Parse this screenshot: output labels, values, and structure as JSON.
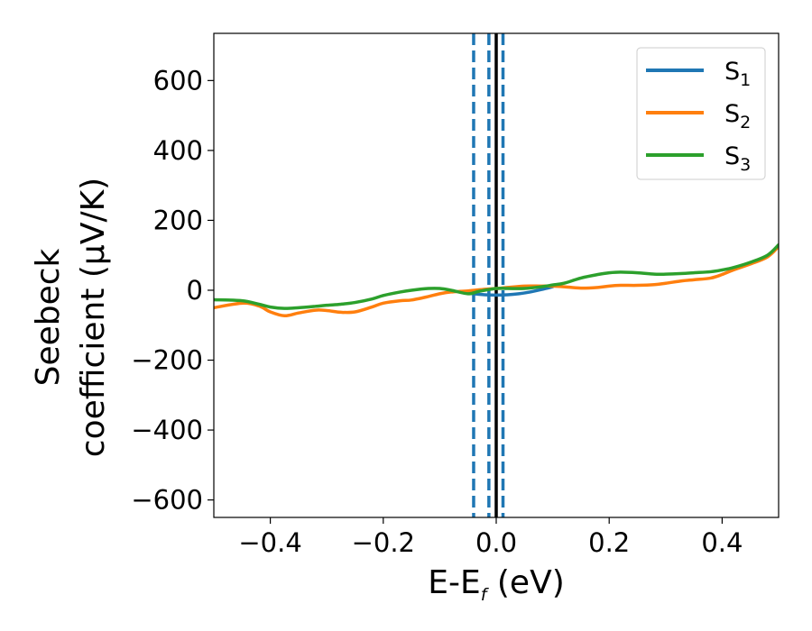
{
  "chart_data": {
    "type": "line",
    "xlabel": {
      "main": "E-E",
      "sub": "f",
      "tail": " (eV)"
    },
    "ylabel": {
      "line1": "Seebeck",
      "line2": "coefficient  (μV/K)"
    },
    "xlim": [
      -0.5,
      0.5
    ],
    "ylim": [
      -650,
      735
    ],
    "xticks": [
      -0.4,
      -0.2,
      0.0,
      0.2,
      0.4
    ],
    "xtick_labels": [
      "−0.4",
      "−0.2",
      "0.0",
      "0.2",
      "0.4"
    ],
    "yticks": [
      -600,
      -400,
      -200,
      0,
      200,
      400,
      600
    ],
    "ytick_labels": [
      "−600",
      "−400",
      "−200",
      "0",
      "200",
      "400",
      "600"
    ],
    "grid": false,
    "legend_position": "top-right",
    "vlines": [
      {
        "x": 0.0,
        "style": "solid",
        "color": "#000000"
      },
      {
        "x": -0.04,
        "style": "dashed",
        "color": "#1f77b4"
      },
      {
        "x": -0.013,
        "style": "dashed",
        "color": "#1f77b4"
      },
      {
        "x": 0.012,
        "style": "dashed",
        "color": "#1f77b4"
      }
    ],
    "series": [
      {
        "name": "S",
        "sub": "1",
        "color": "#1f77b4",
        "x": [
          -0.06,
          -0.04,
          -0.02,
          0.0,
          0.02,
          0.04,
          0.06,
          0.08,
          0.1
        ],
        "y": [
          -5,
          -10,
          -13,
          -14,
          -13,
          -10,
          -5,
          2,
          10
        ]
      },
      {
        "name": "S",
        "sub": "2",
        "color": "#ff7f0e",
        "x": [
          -0.5,
          -0.45,
          -0.42,
          -0.4,
          -0.375,
          -0.35,
          -0.32,
          -0.3,
          -0.275,
          -0.25,
          -0.22,
          -0.2,
          -0.17,
          -0.15,
          -0.12,
          -0.1,
          -0.08,
          -0.05,
          -0.02,
          0.0,
          0.02,
          0.05,
          0.08,
          0.1,
          0.12,
          0.15,
          0.18,
          0.2,
          0.22,
          0.25,
          0.28,
          0.3,
          0.33,
          0.35,
          0.38,
          0.4,
          0.42,
          0.45,
          0.48,
          0.5
        ],
        "y": [
          -50,
          -37,
          -45,
          -62,
          -73,
          -65,
          -57,
          -58,
          -63,
          -62,
          -48,
          -37,
          -30,
          -28,
          -18,
          -10,
          -5,
          -2,
          3,
          5,
          8,
          12,
          12,
          12,
          10,
          6,
          8,
          12,
          14,
          14,
          16,
          20,
          27,
          30,
          35,
          45,
          58,
          75,
          95,
          125
        ]
      },
      {
        "name": "S",
        "sub": "3",
        "color": "#2ca02c",
        "x": [
          -0.5,
          -0.45,
          -0.42,
          -0.4,
          -0.375,
          -0.35,
          -0.32,
          -0.3,
          -0.275,
          -0.25,
          -0.22,
          -0.2,
          -0.17,
          -0.15,
          -0.12,
          -0.1,
          -0.08,
          -0.05,
          -0.03,
          0.0,
          0.02,
          0.05,
          0.08,
          0.1,
          0.12,
          0.15,
          0.18,
          0.2,
          0.22,
          0.25,
          0.28,
          0.3,
          0.33,
          0.35,
          0.38,
          0.4,
          0.42,
          0.45,
          0.48,
          0.5
        ],
        "y": [
          -27,
          -30,
          -40,
          -48,
          -52,
          -50,
          -46,
          -43,
          -40,
          -35,
          -25,
          -15,
          -5,
          0,
          5,
          5,
          0,
          -10,
          -3,
          5,
          5,
          5,
          10,
          15,
          20,
          35,
          45,
          50,
          52,
          50,
          46,
          46,
          48,
          50,
          53,
          58,
          65,
          80,
          100,
          130
        ]
      }
    ]
  }
}
